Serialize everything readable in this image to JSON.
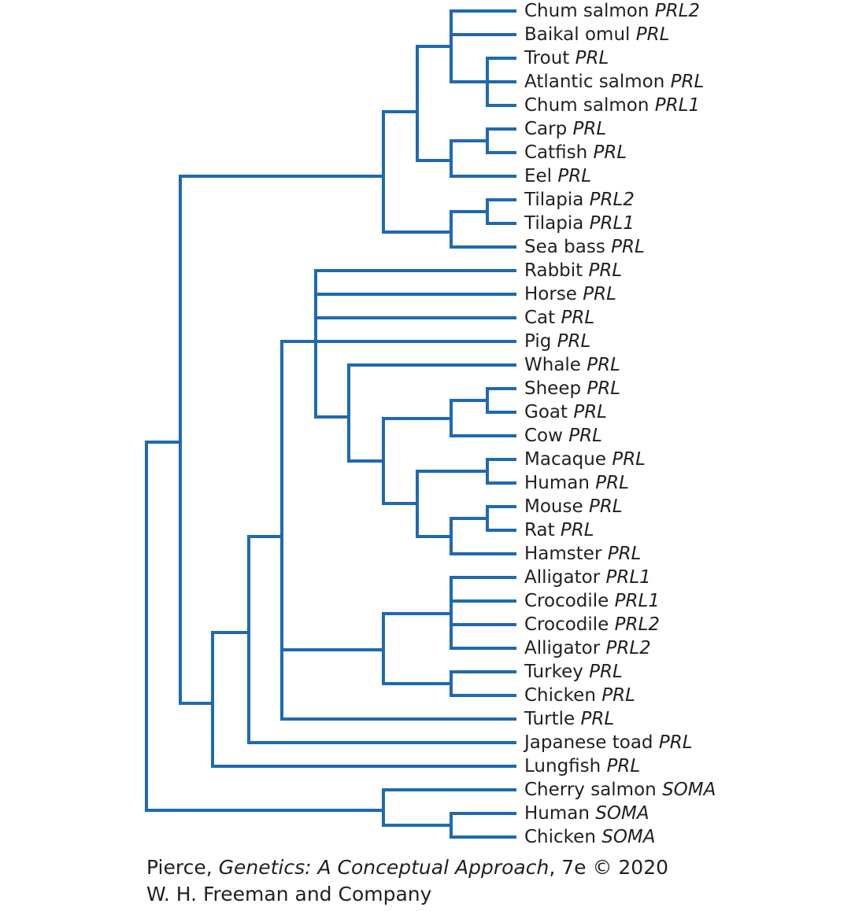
{
  "tree": {
    "leaves": [
      {
        "name": "Chum salmon",
        "gene": "PRL2"
      },
      {
        "name": "Baikal omul",
        "gene": "PRL"
      },
      {
        "name": "Trout",
        "gene": "PRL"
      },
      {
        "name": "Atlantic salmon",
        "gene": "PRL"
      },
      {
        "name": "Chum salmon",
        "gene": "PRL1"
      },
      {
        "name": "Carp",
        "gene": "PRL"
      },
      {
        "name": "Catfish",
        "gene": "PRL"
      },
      {
        "name": "Eel",
        "gene": "PRL"
      },
      {
        "name": "Tilapia",
        "gene": "PRL2"
      },
      {
        "name": "Tilapia",
        "gene": "PRL1"
      },
      {
        "name": "Sea bass",
        "gene": "PRL"
      },
      {
        "name": "Rabbit",
        "gene": "PRL"
      },
      {
        "name": "Horse",
        "gene": "PRL"
      },
      {
        "name": "Cat",
        "gene": "PRL"
      },
      {
        "name": "Pig",
        "gene": "PRL"
      },
      {
        "name": "Whale",
        "gene": "PRL"
      },
      {
        "name": "Sheep",
        "gene": "PRL"
      },
      {
        "name": "Goat",
        "gene": "PRL"
      },
      {
        "name": "Cow",
        "gene": "PRL"
      },
      {
        "name": "Macaque",
        "gene": "PRL"
      },
      {
        "name": "Human",
        "gene": "PRL"
      },
      {
        "name": "Mouse",
        "gene": "PRL"
      },
      {
        "name": "Rat",
        "gene": "PRL"
      },
      {
        "name": "Hamster",
        "gene": "PRL"
      },
      {
        "name": "Alligator",
        "gene": "PRL1"
      },
      {
        "name": "Crocodile",
        "gene": "PRL1"
      },
      {
        "name": "Crocodile",
        "gene": "PRL2"
      },
      {
        "name": "Alligator",
        "gene": "PRL2"
      },
      {
        "name": "Turkey",
        "gene": "PRL"
      },
      {
        "name": "Chicken",
        "gene": "PRL"
      },
      {
        "name": "Turtle",
        "gene": "PRL"
      },
      {
        "name": "Japanese toad",
        "gene": "PRL"
      },
      {
        "name": "Lungfish",
        "gene": "PRL"
      },
      {
        "name": "Cherry salmon",
        "gene": "SOMA"
      },
      {
        "name": "Human",
        "gene": "SOMA"
      },
      {
        "name": "Chicken",
        "gene": "SOMA"
      }
    ]
  },
  "credit": {
    "author": "Pierce, ",
    "book_title": "Genetics: A Conceptual Approach",
    "edition": ", 7e © 2020",
    "publisher": "W. H. Freeman and Company"
  }
}
